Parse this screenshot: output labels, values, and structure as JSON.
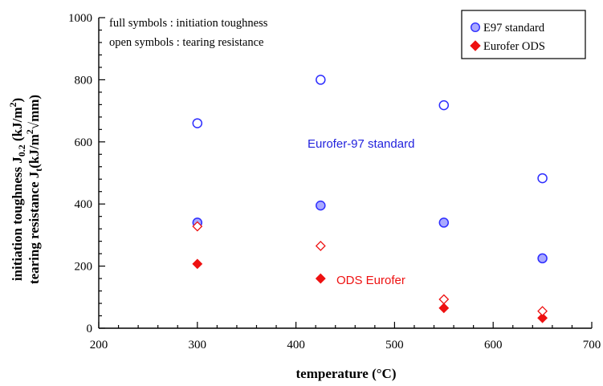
{
  "chart_data": {
    "type": "scatter",
    "xlabel": "temperature (°C)",
    "ylabel_line1": "initiation toughness J",
    "ylabel_line1_sub": "0.2",
    "ylabel_line1_unit": " (kJ/m",
    "ylabel_line1_sup": "2",
    "ylabel_line1_end": ")",
    "ylabel_line2": "tearing resistance J",
    "ylabel_line2_sub": "t",
    "ylabel_line2_unit": "(kJ/m",
    "ylabel_line2_sup": "2",
    "ylabel_line2_end": "√mm)",
    "xlim": [
      200,
      700
    ],
    "ylim": [
      0,
      1000
    ],
    "xticks": [
      200,
      300,
      400,
      500,
      600,
      700
    ],
    "yticks": [
      0,
      200,
      400,
      600,
      800,
      1000
    ],
    "notes": [
      "full symbols : initiation toughness",
      "open symbols : tearing resistance"
    ],
    "legend": {
      "placement": "top-right",
      "entries": [
        "E97 standard",
        "Eurofer ODS"
      ]
    },
    "annotations": [
      "Eurofer-97 standard",
      "ODS Eurofer"
    ],
    "series": [
      {
        "name": "E97 standard",
        "measure": "initiation toughness",
        "marker": "circle",
        "filled": true,
        "color": "#2d2dff",
        "x": [
          300,
          425,
          550,
          650
        ],
        "y": [
          340,
          395,
          340,
          225
        ]
      },
      {
        "name": "E97 standard",
        "measure": "tearing resistance",
        "marker": "circle",
        "filled": false,
        "color": "#2d2dff",
        "x": [
          300,
          425,
          550,
          650
        ],
        "y": [
          660,
          800,
          718,
          483
        ]
      },
      {
        "name": "Eurofer ODS",
        "measure": "initiation toughness",
        "marker": "diamond",
        "filled": true,
        "color": "#ee1111",
        "x": [
          300,
          425,
          550,
          650
        ],
        "y": [
          207,
          160,
          65,
          33
        ]
      },
      {
        "name": "Eurofer ODS",
        "measure": "tearing resistance",
        "marker": "diamond",
        "filled": false,
        "color": "#ee1111",
        "x": [
          300,
          425,
          550,
          650
        ],
        "y": [
          328,
          265,
          93,
          55
        ]
      }
    ],
    "colors": {
      "e97": "#2d2dff",
      "ods": "#ee1111",
      "e97_fill": "#a9a9ff",
      "annot_e97": "#2222dd",
      "annot_ods": "#ee1111"
    }
  }
}
